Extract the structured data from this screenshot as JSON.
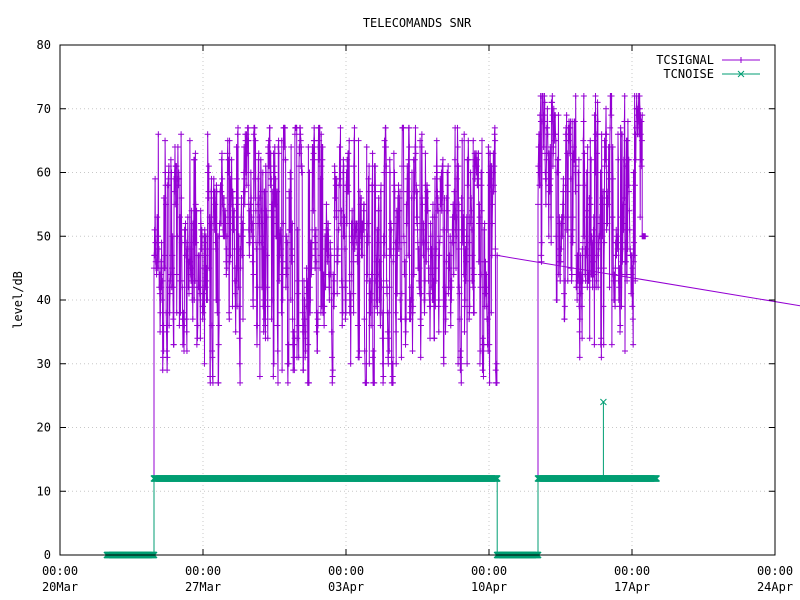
{
  "chart_data": {
    "type": "line",
    "title": "TELECOMANDS SNR",
    "xlabel": "",
    "ylabel": "level/dB",
    "x_ticks": [
      {
        "time": "00:00",
        "date": "20Mar",
        "day": 0
      },
      {
        "time": "00:00",
        "date": "27Mar",
        "day": 7
      },
      {
        "time": "00:00",
        "date": "03Apr",
        "day": 14
      },
      {
        "time": "00:00",
        "date": "10Apr",
        "day": 21
      },
      {
        "time": "00:00",
        "date": "17Apr",
        "day": 28
      },
      {
        "time": "00:00",
        "date": "24Apr",
        "day": 35
      }
    ],
    "xlim_days": [
      0,
      35
    ],
    "ylim": [
      0,
      80
    ],
    "y_ticks": [
      0,
      10,
      20,
      30,
      40,
      50,
      60,
      70,
      80
    ],
    "grid": true,
    "legend_position": "top-right",
    "series": [
      {
        "name": "TCSIGNAL",
        "color": "#9400d3",
        "marker": "plus",
        "segments": [
          {
            "x_start": 4.6,
            "x_end": 21.4,
            "min": 27,
            "max": 67,
            "clusters": [
              [
                41,
                41.5
              ],
              [
                38,
                39.5
              ],
              [
                51,
                52
              ],
              [
                40,
                41
              ],
              [
                41,
                42
              ],
              [
                38,
                38.3
              ],
              [
                66,
                66.5
              ]
            ]
          },
          {
            "x_start": 23.4,
            "x_end": 28.5,
            "min": 31,
            "max": 72,
            "clusters": [
              [
                44,
                25.3
              ],
              [
                44,
                26.0
              ],
              [
                50,
                28.5
              ]
            ]
          }
        ]
      },
      {
        "name": "TCNOISE",
        "color": "#009e73",
        "marker": "cross",
        "points": [
          [
            2.3,
            0
          ],
          [
            4.6,
            0
          ],
          [
            4.6,
            12
          ],
          [
            21.4,
            12
          ],
          [
            21.4,
            0
          ],
          [
            23.4,
            0
          ],
          [
            23.4,
            12
          ],
          [
            26.6,
            12
          ],
          [
            26.6,
            24
          ],
          [
            26.6,
            12
          ],
          [
            29.2,
            12
          ]
        ]
      }
    ]
  }
}
